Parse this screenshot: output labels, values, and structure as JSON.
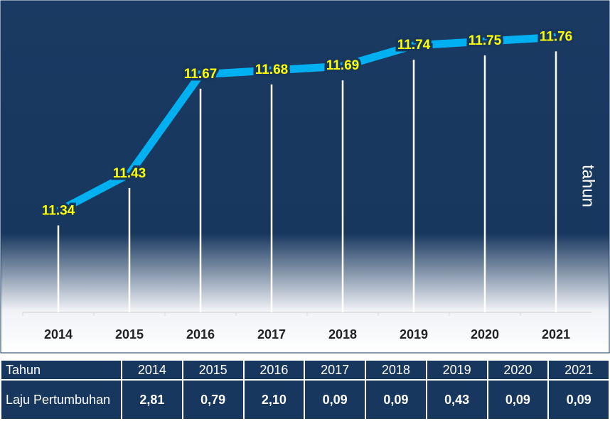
{
  "chart_data": {
    "type": "line",
    "categories": [
      "2014",
      "2015",
      "2016",
      "2017",
      "2018",
      "2019",
      "2020",
      "2021"
    ],
    "values": [
      11.34,
      11.43,
      11.67,
      11.68,
      11.69,
      11.74,
      11.75,
      11.76
    ],
    "color": "#00b0f0",
    "label_color": "#ffff00",
    "drop_lines": true,
    "ylim": [
      11.13,
      11.8
    ],
    "y_label": "tahun"
  },
  "table": {
    "header": [
      "Tahun",
      "2014",
      "2015",
      "2016",
      "2017",
      "2018",
      "2019",
      "2020",
      "2021"
    ],
    "rows": [
      [
        "Laju Pertumbuhan",
        "2,81",
        "0,79",
        "2,10",
        "0,09",
        "0,09",
        "0,43",
        "0,09",
        "0,09"
      ]
    ]
  }
}
